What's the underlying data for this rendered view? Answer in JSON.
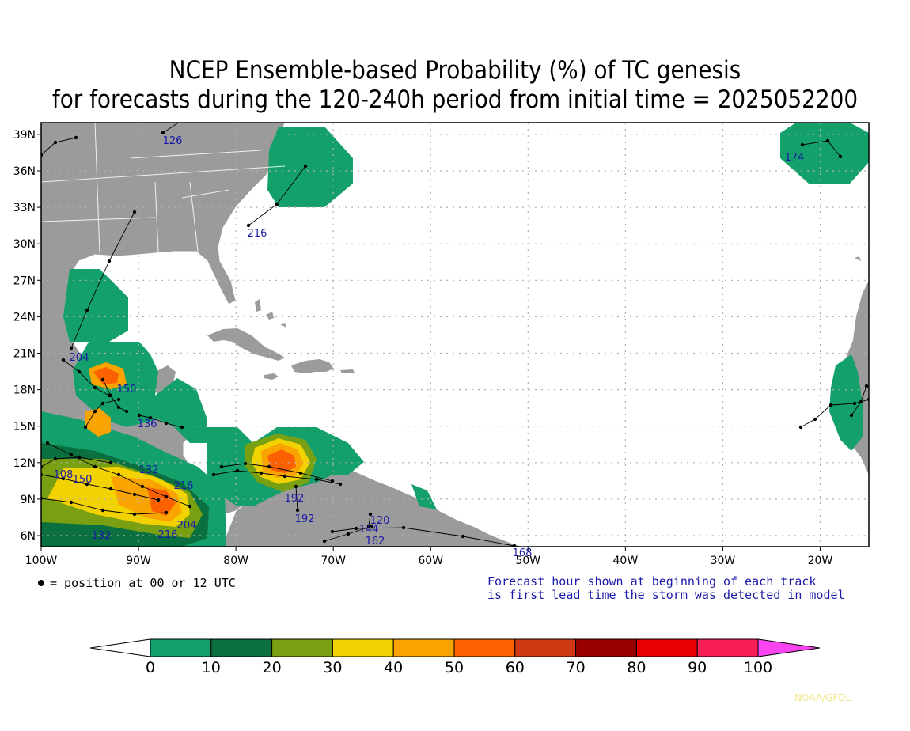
{
  "title": {
    "line1": "NCEP Ensemble-based Probability (%) of TC genesis",
    "line2": "for forecasts during the 120-240h period from initial time = 2025052200"
  },
  "map": {
    "lon_labels": [
      "100W",
      "90W",
      "80W",
      "70W",
      "60W",
      "50W",
      "40W",
      "30W",
      "20W"
    ],
    "lat_labels": [
      "6N",
      "9N",
      "12N",
      "15N",
      "18N",
      "21N",
      "24N",
      "27N",
      "30N",
      "33N",
      "36N",
      "39N"
    ],
    "colors": {
      "land": "#9b9b9b",
      "ocean": "#ffffff",
      "grid": "#b0b0b0",
      "track": "#000000",
      "track_label": "#1a1aa8"
    },
    "track_labels": [
      "126",
      "216",
      "174",
      "204",
      "150",
      "136",
      "192",
      "192",
      "120",
      "168",
      "132",
      "216",
      "108",
      "150",
      "132",
      "216",
      "204",
      "144",
      "162"
    ]
  },
  "legend": {
    "marker_text": "= position at 00 or 12 UTC",
    "forecast_note_1": "Forecast hour shown at beginning of each track",
    "forecast_note_2": "is first lead time the storm was detected in model"
  },
  "colorbar": {
    "labels": [
      "0",
      "10",
      "20",
      "30",
      "40",
      "50",
      "60",
      "70",
      "80",
      "90",
      "100"
    ],
    "colors": [
      "#13a06a",
      "#0b7040",
      "#78a012",
      "#f2d200",
      "#f9a400",
      "#fb6100",
      "#cf3812",
      "#980000",
      "#e60000",
      "#f81d55"
    ],
    "under_color": "#ffffff",
    "over_color": "#f845f0"
  },
  "credit": "NOAA/GFDL"
}
